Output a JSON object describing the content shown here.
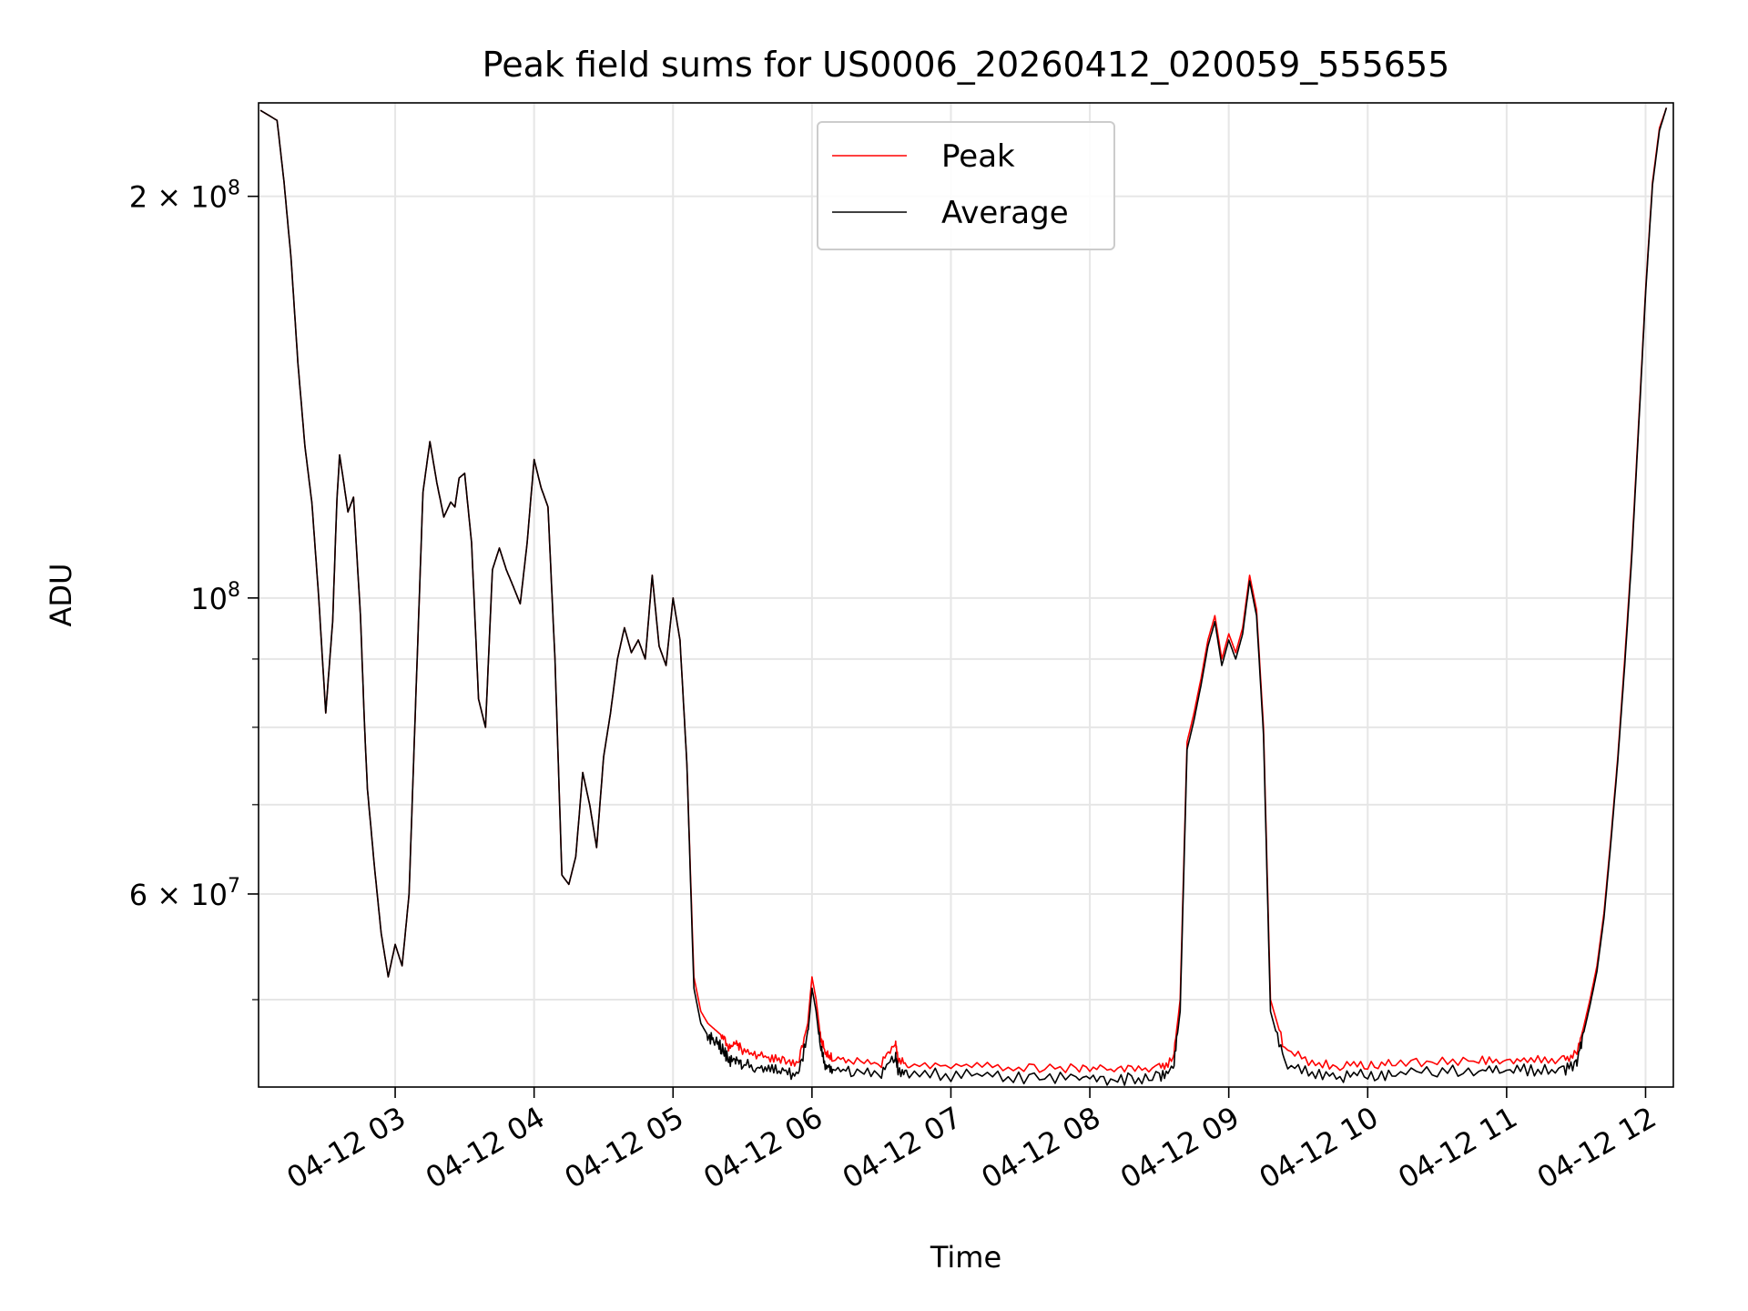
{
  "chart_data": {
    "type": "line",
    "title": "Peak field sums for US0006_20260412_020059_555655",
    "xlabel": "Time",
    "ylabel": "ADU",
    "y_scale": "log",
    "ylim": [
      43000000,
      235000000
    ],
    "xlim": [
      "04-12 02:01",
      "04-12 12:12"
    ],
    "x_ticks": [
      "04-12 03",
      "04-12 04",
      "04-12 05",
      "04-12 06",
      "04-12 07",
      "04-12 08",
      "04-12 09",
      "04-12 10",
      "04-12 11",
      "04-12 12"
    ],
    "x_tick_hours": [
      3,
      4,
      5,
      6,
      7,
      8,
      9,
      10,
      11,
      12
    ],
    "y_ticks": [
      {
        "value": 200000000,
        "mantissa": "2",
        "times": "×",
        "base": "10",
        "exp": "8"
      },
      {
        "value": 100000000,
        "mantissa": "",
        "times": "",
        "base": "10",
        "exp": "8"
      },
      {
        "value": 60000000,
        "mantissa": "6",
        "times": "×",
        "base": "10",
        "exp": "7"
      }
    ],
    "y_minor_ticks": [
      50000000,
      70000000,
      80000000,
      90000000
    ],
    "grid": true,
    "legend_position": "top-center",
    "x_unit_note": "hours on 2026-04-12",
    "series": [
      {
        "name": "Peak",
        "color": "#ff0000",
        "x": [
          2.03,
          2.15,
          2.2,
          2.25,
          2.3,
          2.35,
          2.4,
          2.45,
          2.5,
          2.55,
          2.58,
          2.6,
          2.63,
          2.66,
          2.7,
          2.75,
          2.78,
          2.8,
          2.85,
          2.9,
          2.95,
          3.0,
          3.05,
          3.1,
          3.15,
          3.2,
          3.25,
          3.3,
          3.35,
          3.4,
          3.43,
          3.46,
          3.5,
          3.55,
          3.6,
          3.65,
          3.7,
          3.75,
          3.8,
          3.85,
          3.9,
          3.95,
          4.0,
          4.05,
          4.1,
          4.15,
          4.2,
          4.25,
          4.3,
          4.35,
          4.4,
          4.45,
          4.5,
          4.55,
          4.6,
          4.65,
          4.7,
          4.75,
          4.8,
          4.85,
          4.9,
          4.95,
          5.0,
          5.05,
          5.1,
          5.15,
          5.2,
          5.25,
          5.3,
          5.35,
          5.4,
          5.45,
          5.5,
          5.6,
          5.7,
          5.8,
          5.9,
          5.97,
          6.0,
          6.03,
          6.06,
          6.1,
          6.15,
          6.3,
          6.5,
          6.6,
          6.62,
          6.7,
          7.0,
          7.3,
          7.6,
          7.9,
          8.1,
          8.3,
          8.5,
          8.6,
          8.65,
          8.7,
          8.75,
          8.8,
          8.85,
          8.9,
          8.95,
          9.0,
          9.05,
          9.1,
          9.15,
          9.2,
          9.25,
          9.3,
          9.4,
          9.6,
          9.8,
          10.0,
          10.2,
          10.5,
          10.8,
          11.0,
          11.2,
          11.4,
          11.5,
          11.55,
          11.6,
          11.65,
          11.7,
          11.75,
          11.8,
          11.85,
          11.9,
          11.95,
          12.0,
          12.05,
          12.1,
          12.15
        ],
        "y": [
          232000000,
          228000000,
          205000000,
          180000000,
          150000000,
          130000000,
          118000000,
          100000000,
          82000000,
          96000000,
          118000000,
          128000000,
          122000000,
          116000000,
          119000000,
          97000000,
          80000000,
          72000000,
          63000000,
          56000000,
          52000000,
          55000000,
          53000000,
          60000000,
          85000000,
          120000000,
          131000000,
          122000000,
          115000000,
          118000000,
          117000000,
          123000000,
          124000000,
          110000000,
          84000000,
          80000000,
          105000000,
          109000000,
          105000000,
          102000000,
          99000000,
          110000000,
          127000000,
          121000000,
          117000000,
          90000000,
          62000000,
          61000000,
          64000000,
          74000000,
          70000000,
          65000000,
          76000000,
          82000000,
          90000000,
          95000000,
          91000000,
          93000000,
          90000000,
          104000000,
          92000000,
          89000000,
          100000000,
          93000000,
          75000000,
          52000000,
          49000000,
          48000000,
          47500000,
          47000000,
          46000000,
          46500000,
          45800000,
          45500000,
          45200000,
          45000000,
          44800000,
          48000000,
          52000000,
          50000000,
          47000000,
          45500000,
          45300000,
          45000000,
          44800000,
          46500000,
          45000000,
          44700000,
          44600000,
          44500000,
          44400000,
          44400000,
          44300000,
          44300000,
          44500000,
          45000000,
          50000000,
          78000000,
          82000000,
          87000000,
          93000000,
          97000000,
          90000000,
          94000000,
          91000000,
          95000000,
          104000000,
          98000000,
          80000000,
          50000000,
          46000000,
          44800000,
          44600000,
          44700000,
          44800000,
          44900000,
          45000000,
          45100000,
          45100000,
          45000000,
          45500000,
          47500000,
          50000000,
          53000000,
          58000000,
          66000000,
          76000000,
          90000000,
          108000000,
          135000000,
          170000000,
          205000000,
          225000000,
          233000000
        ]
      },
      {
        "name": "Average",
        "color": "#000000",
        "x": [
          2.03,
          2.15,
          2.2,
          2.25,
          2.3,
          2.35,
          2.4,
          2.45,
          2.5,
          2.55,
          2.58,
          2.6,
          2.63,
          2.66,
          2.7,
          2.75,
          2.78,
          2.8,
          2.85,
          2.9,
          2.95,
          3.0,
          3.05,
          3.1,
          3.15,
          3.2,
          3.25,
          3.3,
          3.35,
          3.4,
          3.43,
          3.46,
          3.5,
          3.55,
          3.6,
          3.65,
          3.7,
          3.75,
          3.8,
          3.85,
          3.9,
          3.95,
          4.0,
          4.05,
          4.1,
          4.15,
          4.2,
          4.25,
          4.3,
          4.35,
          4.4,
          4.45,
          4.5,
          4.55,
          4.6,
          4.65,
          4.7,
          4.75,
          4.8,
          4.85,
          4.9,
          4.95,
          5.0,
          5.05,
          5.1,
          5.15,
          5.2,
          5.25,
          5.3,
          5.35,
          5.4,
          5.45,
          5.5,
          5.6,
          5.7,
          5.8,
          5.9,
          5.97,
          6.0,
          6.03,
          6.06,
          6.1,
          6.15,
          6.3,
          6.5,
          6.6,
          6.62,
          6.7,
          7.0,
          7.3,
          7.6,
          7.9,
          8.1,
          8.3,
          8.5,
          8.6,
          8.65,
          8.7,
          8.75,
          8.8,
          8.85,
          8.9,
          8.95,
          9.0,
          9.05,
          9.1,
          9.15,
          9.2,
          9.25,
          9.3,
          9.4,
          9.6,
          9.8,
          10.0,
          10.2,
          10.5,
          10.8,
          11.0,
          11.2,
          11.4,
          11.5,
          11.55,
          11.6,
          11.65,
          11.7,
          11.75,
          11.8,
          11.85,
          11.9,
          11.95,
          12.0,
          12.05,
          12.1,
          12.15
        ],
        "y": [
          232000000,
          228000000,
          205000000,
          180000000,
          150000000,
          130000000,
          118000000,
          100000000,
          82000000,
          96000000,
          118000000,
          128000000,
          122000000,
          116000000,
          119000000,
          97000000,
          80000000,
          72000000,
          63000000,
          56000000,
          52000000,
          55000000,
          53000000,
          60000000,
          85000000,
          120000000,
          131000000,
          122000000,
          115000000,
          118000000,
          117000000,
          123000000,
          124000000,
          110000000,
          84000000,
          80000000,
          105000000,
          109000000,
          105000000,
          102000000,
          99000000,
          110000000,
          127000000,
          121000000,
          117000000,
          90000000,
          62000000,
          61000000,
          64000000,
          74000000,
          70000000,
          65000000,
          76000000,
          82000000,
          90000000,
          95000000,
          91000000,
          93000000,
          90000000,
          104000000,
          92000000,
          89000000,
          100000000,
          93000000,
          75000000,
          51000000,
          48000000,
          47000000,
          46500000,
          46000000,
          45000000,
          45200000,
          44700000,
          44500000,
          44300000,
          44100000,
          44000000,
          47000000,
          51000000,
          49000000,
          46000000,
          44600000,
          44400000,
          44200000,
          44000000,
          45500000,
          44200000,
          44000000,
          43900000,
          43800000,
          43700000,
          43700000,
          43600000,
          43600000,
          43800000,
          44300000,
          49000000,
          77000000,
          81000000,
          86000000,
          92000000,
          96000000,
          89000000,
          93000000,
          90000000,
          94000000,
          103000000,
          97000000,
          79000000,
          49000000,
          44800000,
          43900000,
          43800000,
          43900000,
          44000000,
          44100000,
          44200000,
          44300000,
          44300000,
          44200000,
          44800000,
          47000000,
          49500000,
          52500000,
          57500000,
          65500000,
          75500000,
          89000000,
          107000000,
          134000000,
          169000000,
          204000000,
          224000000,
          233000000
        ]
      }
    ]
  }
}
